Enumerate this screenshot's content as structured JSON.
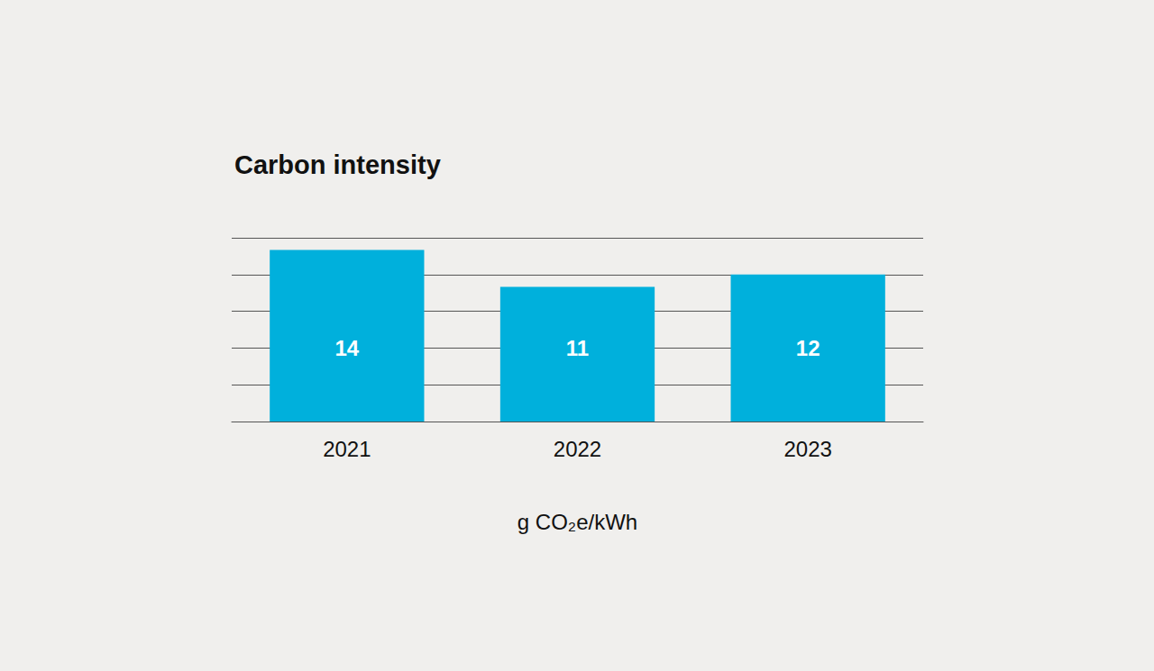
{
  "chart_data": {
    "type": "bar",
    "title": "Carbon intensity",
    "categories": [
      "2021",
      "2022",
      "2023"
    ],
    "values": [
      14,
      11,
      12
    ],
    "color": "#00b0dc",
    "xlabel": "g CO₂e/kWh",
    "ylim": [
      0,
      15
    ],
    "yticks": [
      0,
      3,
      6,
      9,
      12,
      15
    ],
    "grid": true,
    "data_labels": true,
    "tick_labels": "x"
  }
}
